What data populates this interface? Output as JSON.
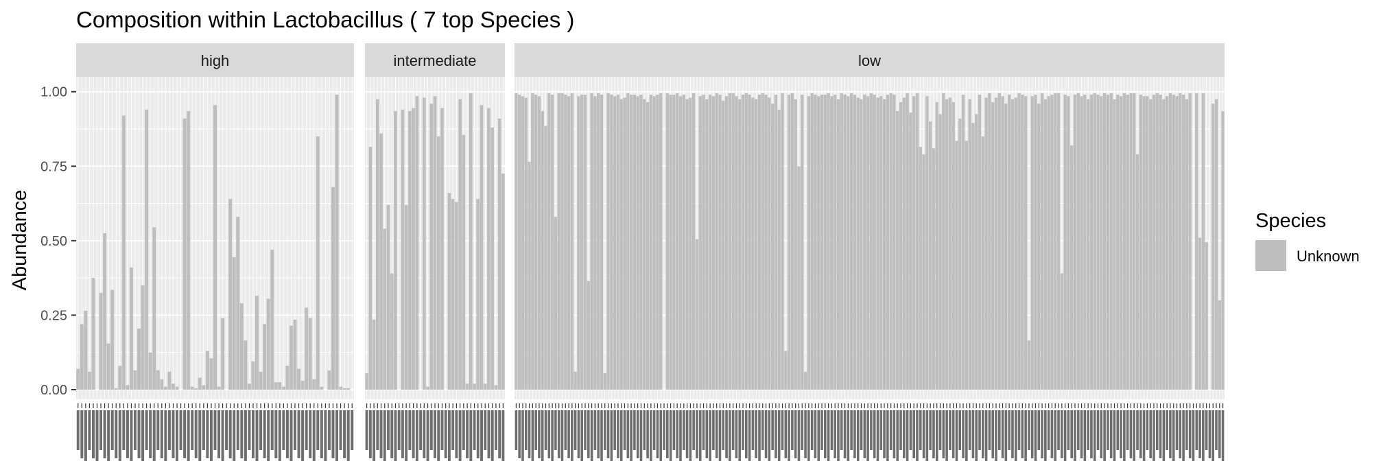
{
  "chart_data": {
    "type": "bar",
    "title": "Composition within Lactobacillus ( 7 top Species )",
    "ylabel": "Abundance",
    "xlabel": "",
    "ylim": [
      0,
      1.05
    ],
    "yticks": [
      "0.00",
      "0.25",
      "0.50",
      "0.75",
      "1.00"
    ],
    "legend": {
      "title": "Species",
      "position": "right",
      "entries": [
        {
          "label": "Unknown",
          "color": "#bebebe"
        }
      ]
    },
    "bar_color": "#bebebe",
    "facets": [
      {
        "label": "high",
        "values": [
          0.07,
          0.22,
          0.265,
          0.06,
          0.375,
          0.0,
          0.325,
          0.525,
          0.155,
          0.335,
          0.005,
          0.08,
          0.92,
          0.015,
          0.41,
          0.065,
          0.205,
          0.35,
          0.94,
          0.125,
          0.545,
          0.065,
          0.035,
          0.01,
          0.06,
          0.02,
          0.01,
          0.0,
          0.91,
          0.935,
          0.01,
          0.005,
          0.04,
          0.015,
          0.13,
          0.105,
          0.955,
          0.01,
          0.24,
          0.0,
          0.64,
          0.445,
          0.58,
          0.29,
          0.165,
          0.02,
          0.095,
          0.315,
          0.06,
          0.22,
          0.305,
          0.47,
          0.025,
          0.025,
          0.01,
          0.08,
          0.215,
          0.235,
          0.07,
          0.03,
          0.275,
          0.24,
          0.035,
          0.85,
          0.01,
          0.0,
          0.065,
          0.68,
          0.99,
          0.01,
          0.005,
          0.005,
          0.0
        ]
      },
      {
        "label": "intermediate",
        "values": [
          0.055,
          0.815,
          0.235,
          0.975,
          0.86,
          0.54,
          0.62,
          0.39,
          0.935,
          0.0,
          0.94,
          0.62,
          0.935,
          0.945,
          0.985,
          0.0,
          0.98,
          0.01,
          0.96,
          0.985,
          0.85,
          0.945,
          0.0,
          0.66,
          0.64,
          0.63,
          0.975,
          0.855,
          0.02,
          0.995,
          0.02,
          0.64,
          0.955,
          0.02,
          0.945,
          0.88,
          0.015,
          0.91,
          0.725
        ]
      },
      {
        "label": "low",
        "values": [
          0.995,
          0.99,
          0.985,
          0.98,
          0.765,
          0.995,
          0.99,
          0.985,
          0.935,
          0.885,
          0.995,
          0.99,
          0.58,
          0.995,
          0.995,
          0.99,
          0.985,
          0.995,
          0.06,
          0.985,
          0.99,
          0.99,
          0.365,
          0.995,
          0.985,
          0.995,
          0.99,
          0.055,
          0.995,
          0.99,
          0.985,
          0.99,
          0.975,
          0.98,
          0.995,
          0.99,
          0.99,
          0.985,
          0.99,
          0.975,
          0.965,
          0.99,
          0.985,
          0.99,
          0.995,
          0.0,
          0.995,
          0.99,
          0.99,
          0.995,
          0.985,
          0.99,
          0.975,
          0.98,
          0.995,
          0.505,
          0.985,
          0.99,
          0.975,
          0.99,
          0.985,
          0.995,
          0.99,
          0.97,
          0.985,
          0.995,
          0.995,
          0.985,
          0.975,
          0.99,
          0.995,
          0.99,
          0.98,
          0.975,
          0.99,
          0.995,
          0.99,
          0.98,
          0.96,
          0.99,
          0.94,
          0.995,
          0.13,
          0.99,
          0.995,
          0.975,
          0.75,
          0.99,
          0.06,
          0.985,
          0.995,
          0.99,
          0.985,
          0.99,
          0.99,
          0.995,
          0.985,
          0.99,
          0.975,
          0.995,
          0.99,
          0.985,
          0.995,
          0.99,
          0.98,
          0.975,
          0.99,
          0.985,
          0.995,
          0.99,
          0.98,
          0.985,
          0.975,
          0.99,
          0.995,
          0.99,
          0.935,
          0.965,
          0.98,
          0.995,
          0.93,
          0.985,
          0.995,
          0.815,
          0.79,
          0.985,
          0.9,
          0.81,
          0.965,
          0.925,
          0.995,
          0.975,
          0.98,
          0.965,
          0.835,
          0.91,
          0.99,
          0.835,
          0.975,
          0.895,
          0.925,
          0.99,
          0.85,
          0.98,
          0.995,
          0.965,
          0.98,
          0.995,
          0.985,
          0.96,
          0.99,
          0.975,
          0.98,
          0.995,
          0.99,
          0.985,
          0.165,
          0.985,
          0.99,
          0.96,
          0.995,
          0.975,
          0.985,
          0.99,
          0.995,
          0.995,
          0.39,
          0.99,
          0.985,
          0.82,
          0.99,
          0.995,
          0.985,
          0.99,
          0.975,
          0.99,
          0.995,
          0.99,
          0.985,
          0.995,
          0.99,
          0.995,
          0.975,
          0.99,
          0.985,
          0.995,
          0.99,
          0.995,
          0.995,
          0.79,
          0.99,
          0.985,
          0.985,
          0.975,
          0.99,
          0.995,
          0.99,
          0.975,
          0.985,
          0.995,
          0.99,
          0.985,
          0.995,
          0.99,
          0.975,
          0.995,
          0.0,
          0.995,
          0.51,
          0.995,
          0.495,
          0.0,
          0.96,
          0.975,
          0.3,
          0.935
        ]
      }
    ]
  }
}
